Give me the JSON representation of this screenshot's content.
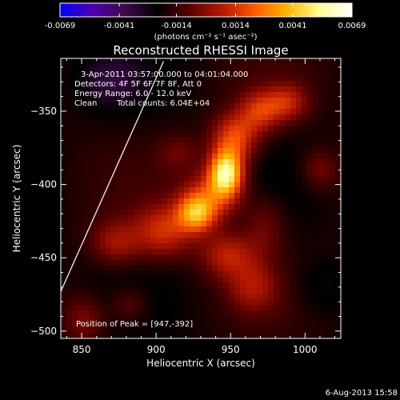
{
  "figure": {
    "title": "Reconstructed RHESSI Image",
    "date_stamp": "6-Aug-2013 15:58",
    "background_color": "#000000",
    "text_color": "#ffffff"
  },
  "colorbar": {
    "tick_labels": [
      "-0.0069",
      "-0.0041",
      "-0.0014",
      "0.0014",
      "0.0041",
      "0.0069"
    ],
    "tick_values": [
      -0.0069,
      -0.0041,
      -0.0014,
      0.0014,
      0.0041,
      0.0069
    ],
    "range": [
      -0.0069,
      0.0069
    ],
    "units_label": "(photons cm⁻² s⁻¹ asec⁻²)",
    "colormap": [
      "#0000ff",
      "#4b00b0",
      "#3c0a4a",
      "#000000",
      "#5a0000",
      "#b41800",
      "#ff5a00",
      "#ffb400",
      "#ffff96",
      "#ffffff"
    ]
  },
  "info": {
    "line1": "3-Apr-2011 03:57:00.000 to 04:01:04.000",
    "line2": "Detectors: 4F 5F 6F 7F 8F, Att 0",
    "line3": "Energy Range: 6.0 - 12.0 keV",
    "line4_left": "Clean",
    "line4_right": "Total counts: 6.04E+04",
    "peak_text": "Position of Peak = [947,-392]"
  },
  "chart_data": {
    "type": "heatmap",
    "title": "Reconstructed RHESSI Image",
    "xlabel": "Heliocentric X (arcsec)",
    "ylabel": "Heliocentric Y (arcsec)",
    "xlim": [
      836,
      1024
    ],
    "ylim": [
      -505,
      -314
    ],
    "xticks": [
      850,
      900,
      950,
      1000
    ],
    "xtick_labels": [
      "850",
      "900",
      "950",
      "1000"
    ],
    "yticks": [
      -350,
      -400,
      -450,
      -500
    ],
    "ytick_labels": [
      "−350",
      "−400",
      "−450",
      "−500"
    ],
    "peak_position": [
      947,
      -392
    ],
    "grid": false,
    "limb_line": [
      [
        836,
        -473
      ],
      [
        905,
        -316
      ]
    ],
    "sources": [
      {
        "x": 947,
        "y": -392,
        "amp": 0.0069,
        "sx": 8,
        "sy": 11
      },
      {
        "x": 953,
        "y": -368,
        "amp": 0.0036,
        "sx": 11,
        "sy": 12
      },
      {
        "x": 927,
        "y": -420,
        "amp": 0.0045,
        "sx": 9,
        "sy": 9
      },
      {
        "x": 937,
        "y": -408,
        "amp": 0.003,
        "sx": 14,
        "sy": 12
      },
      {
        "x": 905,
        "y": -432,
        "amp": 0.003,
        "sx": 14,
        "sy": 13
      },
      {
        "x": 873,
        "y": -440,
        "amp": 0.0022,
        "sx": 12,
        "sy": 11
      },
      {
        "x": 948,
        "y": -448,
        "amp": 0.0026,
        "sx": 13,
        "sy": 11
      },
      {
        "x": 973,
        "y": -428,
        "amp": 0.0015,
        "sx": 10,
        "sy": 15
      },
      {
        "x": 965,
        "y": -470,
        "amp": 0.002,
        "sx": 12,
        "sy": 12
      },
      {
        "x": 970,
        "y": -350,
        "amp": 0.0028,
        "sx": 10,
        "sy": 10
      },
      {
        "x": 988,
        "y": -344,
        "amp": 0.0025,
        "sx": 10,
        "sy": 9
      },
      {
        "x": 1010,
        "y": -390,
        "amp": 0.0016,
        "sx": 9,
        "sy": 10
      },
      {
        "x": 852,
        "y": -492,
        "amp": 0.0018,
        "sx": 10,
        "sy": 12
      },
      {
        "x": 882,
        "y": -482,
        "amp": 0.0014,
        "sx": 9,
        "sy": 9
      },
      {
        "x": 915,
        "y": -378,
        "amp": 0.0012,
        "sx": 10,
        "sy": 9
      },
      {
        "x": 870,
        "y": -330,
        "amp": -0.0012,
        "sx": 14,
        "sy": 12
      },
      {
        "x": 1010,
        "y": -470,
        "amp": -0.0008,
        "sx": 14,
        "sy": 14
      }
    ]
  }
}
